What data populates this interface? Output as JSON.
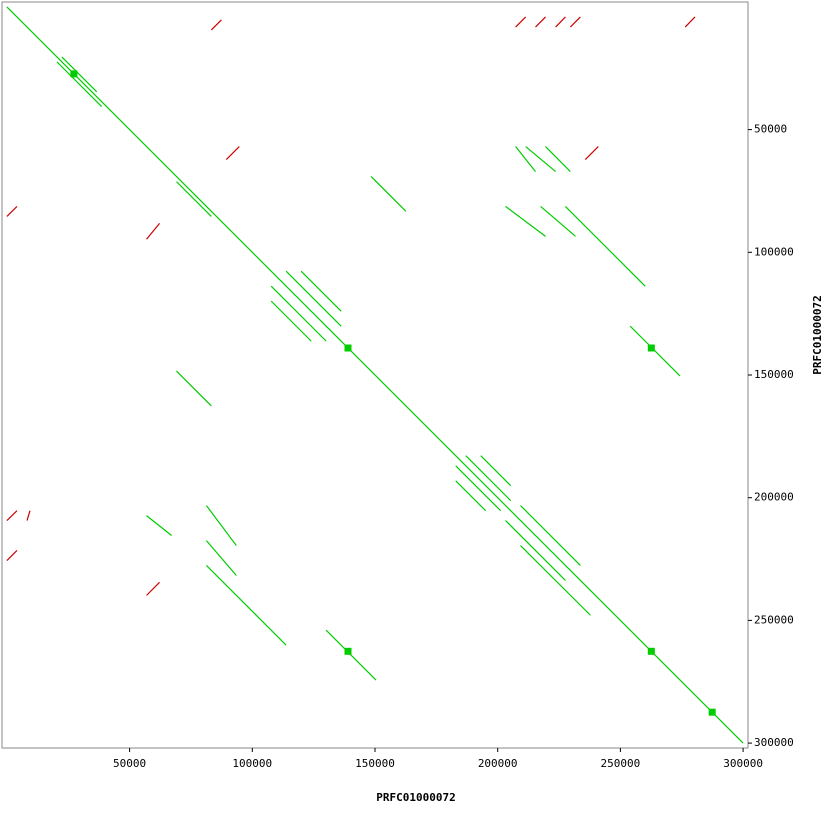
{
  "chart_data": {
    "type": "dotplot",
    "x_label": "PRFC01000072",
    "y_label": "PRFC01000072",
    "xlim": [
      -2000,
      302000
    ],
    "ylim": [
      -2000,
      302000
    ],
    "xticks": [
      50000,
      100000,
      150000,
      200000,
      250000,
      300000
    ],
    "yticks": [
      50000,
      100000,
      150000,
      200000,
      250000,
      300000
    ],
    "series": [
      {
        "color": "#00cc00",
        "segments": [
          {
            "x": [
              0,
              300000
            ],
            "y": [
              0,
              300000
            ]
          },
          {
            "x": [
              107700,
              124000
            ],
            "y": [
              119900,
              136200
            ]
          },
          {
            "x": [
              119900,
              136200
            ],
            "y": [
              107700,
              124000
            ]
          },
          {
            "x": [
              107700,
              130100
            ],
            "y": [
              113800,
              136200
            ]
          },
          {
            "x": [
              113800,
              136200
            ],
            "y": [
              107700,
              130100
            ]
          },
          {
            "x": [
              81300,
              113800
            ],
            "y": [
              227600,
              260100
            ]
          },
          {
            "x": [
              227600,
              260100
            ],
            "y": [
              81300,
              113800
            ]
          },
          {
            "x": [
              182900,
              201200
            ],
            "y": [
              187000,
              205300
            ]
          },
          {
            "x": [
              187000,
              205300
            ],
            "y": [
              182900,
              201200
            ]
          },
          {
            "x": [
              182900,
              195100
            ],
            "y": [
              193100,
              205300
            ]
          },
          {
            "x": [
              193100,
              205300
            ],
            "y": [
              182900,
              195100
            ]
          },
          {
            "x": [
              209300,
              233700
            ],
            "y": [
              203200,
              227600
            ]
          },
          {
            "x": [
              203200,
              227600
            ],
            "y": [
              209300,
              233700
            ]
          },
          {
            "x": [
              209300,
              237800
            ],
            "y": [
              219500,
              247900
            ]
          },
          {
            "x": [
              254000,
              274300
            ],
            "y": [
              130100,
              150400
            ]
          },
          {
            "x": [
              130100,
              150400
            ],
            "y": [
              254000,
              274300
            ]
          },
          {
            "x": [
              20400,
              38600
            ],
            "y": [
              22400,
              40600
            ]
          },
          {
            "x": [
              22400,
              36600
            ],
            "y": [
              20400,
              34600
            ]
          },
          {
            "x": [
              69100,
              83300
            ],
            "y": [
              71200,
              85400
            ]
          },
          {
            "x": [
              148400,
              162600
            ],
            "y": [
              69100,
              83300
            ]
          },
          {
            "x": [
              69100,
              83300
            ],
            "y": [
              148400,
              162600
            ]
          },
          {
            "x": [
              207300,
              215400
            ],
            "y": [
              56900,
              67100
            ]
          },
          {
            "x": [
              211400,
              223600
            ],
            "y": [
              56900,
              67100
            ]
          },
          {
            "x": [
              219500,
              229600
            ],
            "y": [
              56900,
              67100
            ]
          },
          {
            "x": [
              203200,
              219500
            ],
            "y": [
              81300,
              93500
            ]
          },
          {
            "x": [
              217500,
              231700
            ],
            "y": [
              81300,
              93500
            ]
          },
          {
            "x": [
              81300,
              93500
            ],
            "y": [
              203200,
              219500
            ]
          },
          {
            "x": [
              81300,
              93500
            ],
            "y": [
              217500,
              231700
            ]
          },
          {
            "x": [
              56900,
              67100
            ],
            "y": [
              207300,
              215400
            ]
          }
        ],
        "points": {
          "x": [
            27300,
            139000,
            262600,
            139000,
            262600,
            287400
          ],
          "y": [
            27300,
            139000,
            139000,
            262600,
            262600,
            287400
          ]
        }
      },
      {
        "color": "#cc0000",
        "segments": [
          {
            "x": [
              83300,
              87400
            ],
            "y": [
              9400,
              5300
            ]
          },
          {
            "x": [
              207300,
              211400
            ],
            "y": [
              8200,
              4100
            ]
          },
          {
            "x": [
              215400,
              219500
            ],
            "y": [
              8200,
              4100
            ]
          },
          {
            "x": [
              223600,
              227600
            ],
            "y": [
              8200,
              4100
            ]
          },
          {
            "x": [
              229600,
              233700
            ],
            "y": [
              8200,
              4100
            ]
          },
          {
            "x": [
              276400,
              280400
            ],
            "y": [
              8200,
              4100
            ]
          },
          {
            "x": [
              0,
              4100
            ],
            "y": [
              85400,
              81300
            ]
          },
          {
            "x": [
              0,
              4100
            ],
            "y": [
              209300,
              205300
            ]
          },
          {
            "x": [
              0,
              4100
            ],
            "y": [
              225600,
              221500
            ]
          },
          {
            "x": [
              8200,
              9400
            ],
            "y": [
              209300,
              205300
            ]
          },
          {
            "x": [
              56900,
              62200
            ],
            "y": [
              94700,
              88200
            ]
          },
          {
            "x": [
              89400,
              94700
            ],
            "y": [
              62200,
              56900
            ]
          },
          {
            "x": [
              235700,
              241000
            ],
            "y": [
              62200,
              56900
            ]
          },
          {
            "x": [
              56900,
              62200
            ],
            "y": [
              239800,
              234500
            ]
          }
        ]
      }
    ]
  }
}
